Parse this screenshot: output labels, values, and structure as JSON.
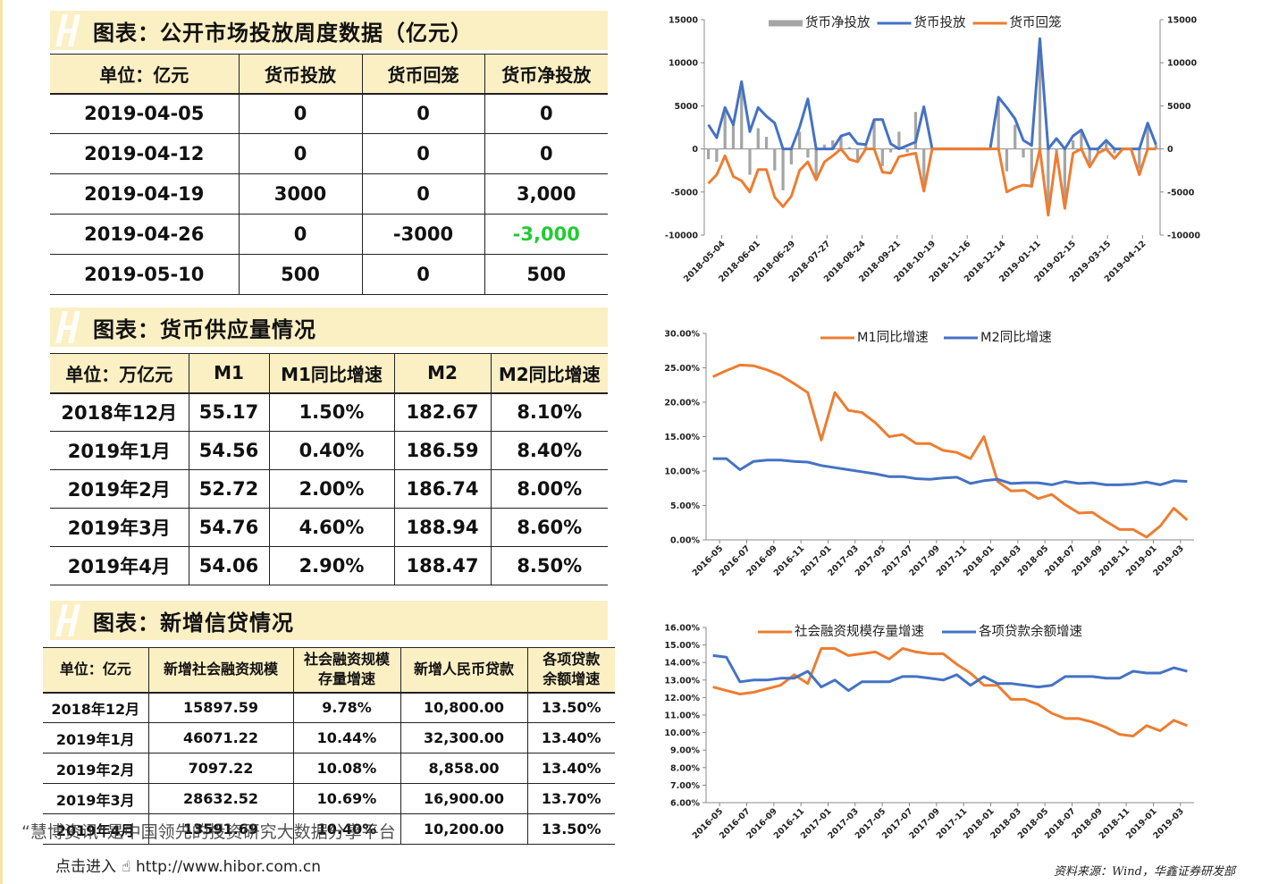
{
  "section1": {
    "title": "图表：公开市场投放周度数据（亿元）",
    "headers": [
      "单位：亿元",
      "货币投放",
      "货币回笼",
      "货币净投放"
    ],
    "rows": [
      [
        "2019-04-05",
        "0",
        "0",
        "0"
      ],
      [
        "2019-04-12",
        "0",
        "0",
        "0"
      ],
      [
        "2019-04-19",
        "3000",
        "0",
        "3,000"
      ],
      [
        "2019-04-26",
        "0",
        "-3000",
        "-3,000"
      ],
      [
        "2019-05-10",
        "500",
        "0",
        "500"
      ]
    ]
  },
  "section2": {
    "title": "图表：货币供应量情况",
    "headers": [
      "单位：万亿元",
      "M1",
      "M1同比增速",
      "M2",
      "M2同比增速"
    ],
    "rows": [
      [
        "2018年12月",
        "55.17",
        "1.50%",
        "182.67",
        "8.10%"
      ],
      [
        "2019年1月",
        "54.56",
        "0.40%",
        "186.59",
        "8.40%"
      ],
      [
        "2019年2月",
        "52.72",
        "2.00%",
        "186.74",
        "8.00%"
      ],
      [
        "2019年3月",
        "54.76",
        "4.60%",
        "188.94",
        "8.60%"
      ],
      [
        "2019年4月",
        "54.06",
        "2.90%",
        "188.47",
        "8.50%"
      ]
    ]
  },
  "section3": {
    "title": "图表：新增信贷情况",
    "headers": [
      "单位：亿元",
      "新增社会融资规模",
      "社会融资规模存量增速",
      "新增人民币贷款",
      "各项贷款余额增速"
    ],
    "header_lines": [
      [
        "单位：亿元"
      ],
      [
        "新增社会融资规模"
      ],
      [
        "社会融资规模",
        "存量增速"
      ],
      [
        "新增人民币贷款"
      ],
      [
        "各项贷款",
        "余额增速"
      ]
    ],
    "rows": [
      [
        "2018年12月",
        "15897.59",
        "9.78%",
        "10,800.00",
        "13.50%"
      ],
      [
        "2019年1月",
        "46071.22",
        "10.44%",
        "32,300.00",
        "13.40%"
      ],
      [
        "2019年2月",
        "7097.22",
        "10.08%",
        "8,858.00",
        "13.40%"
      ],
      [
        "2019年3月",
        "28632.52",
        "10.69%",
        "16,900.00",
        "13.70%"
      ],
      [
        "2019年4月",
        "13591.69",
        "10.40%",
        "10,200.00",
        "13.50%"
      ]
    ]
  },
  "colors": {
    "blue": "#4472c4",
    "orange": "#ed7d31",
    "gray": "#a5a5a5",
    "green": "#22cc33",
    "header_bg": "#fbefc4"
  },
  "chart_data": [
    {
      "type": "bar+line",
      "legend": [
        "货币净投放",
        "货币投放",
        "货币回笼"
      ],
      "legend_position": "top",
      "ylim": [
        -10000,
        15000
      ],
      "y_ticks": [
        "15000",
        "10000",
        "5000",
        "0",
        "-5000",
        "-10000"
      ],
      "x_tick_labels": [
        "2018-05-04",
        "2018-06-01",
        "2018-06-29",
        "2018-07-27",
        "2018-08-24",
        "2018-09-21",
        "2018-10-19",
        "2018-11-16",
        "2018-12-14",
        "2019-01-11",
        "2019-02-15",
        "2019-03-15",
        "2019-04-12"
      ],
      "series": [
        {
          "name": "货币净投放",
          "kind": "bar",
          "values": [
            -1200,
            -1500,
            4800,
            2800,
            7500,
            -3000,
            2400,
            1400,
            -2500,
            -4800,
            -1800,
            2000,
            -1000,
            -3200,
            500,
            1000,
            1500,
            200,
            -1500,
            500,
            3400,
            -2000,
            -400,
            2000,
            -400,
            4300,
            -4900,
            0,
            0,
            0,
            0,
            0,
            0,
            0,
            0,
            6000,
            -2600,
            2800,
            -1000,
            -4500,
            12600,
            -7200,
            -400,
            -5800,
            1000,
            2000,
            -2000,
            -500,
            1000,
            -500,
            0,
            0,
            -2300,
            3000,
            500
          ]
        },
        {
          "name": "货币投放",
          "kind": "line",
          "values": [
            2800,
            1300,
            4800,
            2800,
            7800,
            2000,
            4800,
            3800,
            3000,
            0,
            0,
            2500,
            5800,
            0,
            0,
            0,
            1500,
            1800,
            600,
            500,
            3400,
            3400,
            600,
            0,
            400,
            800,
            4900,
            0,
            0,
            0,
            0,
            0,
            0,
            0,
            0,
            6000,
            4800,
            3500,
            1000,
            400,
            12800,
            0,
            1200,
            0,
            1500,
            2200,
            0,
            0,
            1000,
            0,
            0,
            0,
            0,
            3000,
            500
          ]
        },
        {
          "name": "货币回笼",
          "kind": "line",
          "values": [
            -4000,
            -3000,
            -800,
            -3200,
            -3700,
            -5000,
            -2400,
            -2400,
            -5600,
            -6700,
            -5500,
            -2500,
            -1500,
            -3600,
            -1500,
            -800,
            0,
            -1200,
            -1500,
            0,
            0,
            -2700,
            -2800,
            -900,
            -700,
            -500,
            -4900,
            0,
            0,
            0,
            0,
            0,
            0,
            0,
            0,
            0,
            -5000,
            -4500,
            -4200,
            -4300,
            0,
            -7700,
            -400,
            -6900,
            -500,
            0,
            -2100,
            -500,
            0,
            -1100,
            0,
            0,
            -3000,
            0,
            0
          ]
        }
      ]
    },
    {
      "type": "line",
      "legend": [
        "M1同比增速",
        "M2同比增速"
      ],
      "legend_position": "top",
      "ylim": [
        0,
        30
      ],
      "y_ticks": [
        "30.00%",
        "25.00%",
        "20.00%",
        "15.00%",
        "10.00%",
        "5.00%",
        "0.00%"
      ],
      "x_tick_labels": [
        "2016-05",
        "2016-07",
        "2016-09",
        "2016-11",
        "2017-01",
        "2017-03",
        "2017-05",
        "2017-07",
        "2017-09",
        "2017-11",
        "2018-01",
        "2018-03",
        "2018-05",
        "2018-07",
        "2018-09",
        "2018-11",
        "2019-01",
        "2019-03"
      ],
      "series": [
        {
          "name": "M1同比增速",
          "values": [
            23.7,
            24.6,
            25.4,
            25.3,
            24.7,
            23.9,
            22.7,
            21.4,
            14.5,
            21.4,
            18.8,
            18.5,
            17.0,
            15.0,
            15.3,
            14.0,
            14.0,
            13.0,
            12.7,
            11.8,
            15.0,
            8.5,
            7.1,
            7.2,
            6.0,
            6.6,
            5.1,
            3.9,
            4.0,
            2.7,
            1.5,
            1.5,
            0.4,
            2.0,
            4.6,
            2.9
          ]
        },
        {
          "name": "M2同比增速",
          "values": [
            11.8,
            11.8,
            10.2,
            11.4,
            11.6,
            11.6,
            11.4,
            11.3,
            10.8,
            10.5,
            10.2,
            9.9,
            9.6,
            9.2,
            9.2,
            8.9,
            8.8,
            9.0,
            9.1,
            8.2,
            8.6,
            8.8,
            8.2,
            8.3,
            8.3,
            8.0,
            8.5,
            8.2,
            8.3,
            8.0,
            8.0,
            8.1,
            8.4,
            8.0,
            8.6,
            8.5
          ]
        }
      ]
    },
    {
      "type": "line",
      "legend": [
        "社会融资规模存量增速",
        "各项贷款余额增速"
      ],
      "legend_position": "top",
      "ylim": [
        6,
        16
      ],
      "y_ticks": [
        "16.00%",
        "15.00%",
        "14.00%",
        "13.00%",
        "12.00%",
        "11.00%",
        "10.00%",
        "9.00%",
        "8.00%",
        "7.00%",
        "6.00%"
      ],
      "x_tick_labels": [
        "2016-05",
        "2016-07",
        "2016-09",
        "2016-11",
        "2017-01",
        "2017-03",
        "2017-05",
        "2017-07",
        "2017-09",
        "2017-11",
        "2018-01",
        "2018-03",
        "2018-05",
        "2018-07",
        "2018-09",
        "2018-11",
        "2019-01",
        "2019-03"
      ],
      "series": [
        {
          "name": "社会融资规模存量增速",
          "values": [
            12.6,
            12.4,
            12.2,
            12.3,
            12.5,
            12.7,
            13.3,
            12.8,
            14.8,
            14.8,
            14.4,
            14.5,
            14.6,
            14.2,
            14.8,
            14.6,
            14.5,
            14.5,
            13.9,
            13.4,
            12.7,
            12.7,
            11.9,
            11.9,
            11.6,
            11.1,
            10.8,
            10.8,
            10.6,
            10.3,
            9.9,
            9.8,
            10.4,
            10.1,
            10.7,
            10.4
          ]
        },
        {
          "name": "各项贷款余额增速",
          "values": [
            14.4,
            14.3,
            12.9,
            13.0,
            13.0,
            13.1,
            13.1,
            13.5,
            12.6,
            13.0,
            12.4,
            12.9,
            12.9,
            12.9,
            13.2,
            13.2,
            13.1,
            13.0,
            13.3,
            12.7,
            13.2,
            12.8,
            12.8,
            12.7,
            12.6,
            12.7,
            13.2,
            13.2,
            13.2,
            13.1,
            13.1,
            13.5,
            13.4,
            13.4,
            13.7,
            13.5
          ]
        }
      ]
    }
  ],
  "footer": {
    "watermark_red": "慧博资讯",
    "watermark_text": "“慧博资讯”是中国领先的投资研究大数据分享平台",
    "link_prefix": "点击进入",
    "link_url": "http://www.hibor.com.cn",
    "source": "资料来源：Wind，华鑫证券研发部"
  }
}
